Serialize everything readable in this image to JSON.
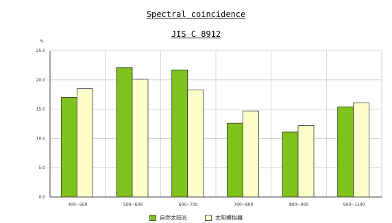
{
  "chart_data": {
    "type": "bar",
    "title": "Spectral coincidence",
    "subtitle": "JIS C 8912",
    "ylabel": "%",
    "ylim": [
      0,
      25
    ],
    "yticks": [
      "0.0",
      "5.0",
      "10.0",
      "15.0",
      "20.0",
      "25.0"
    ],
    "grid": true,
    "legend_position": "bottom",
    "categories": [
      "400~500",
      "500~600",
      "600~700",
      "700~800",
      "800~900",
      "900~1100"
    ],
    "series": [
      {
        "name": "自然太阳光",
        "color": "#7fc31c",
        "values": [
          17.0,
          22.1,
          21.7,
          12.6,
          11.1,
          15.4
        ]
      },
      {
        "name": "太阳模拟器",
        "color": "#ffffcc",
        "values": [
          18.5,
          20.1,
          18.3,
          14.7,
          12.2,
          16.1
        ]
      }
    ]
  }
}
